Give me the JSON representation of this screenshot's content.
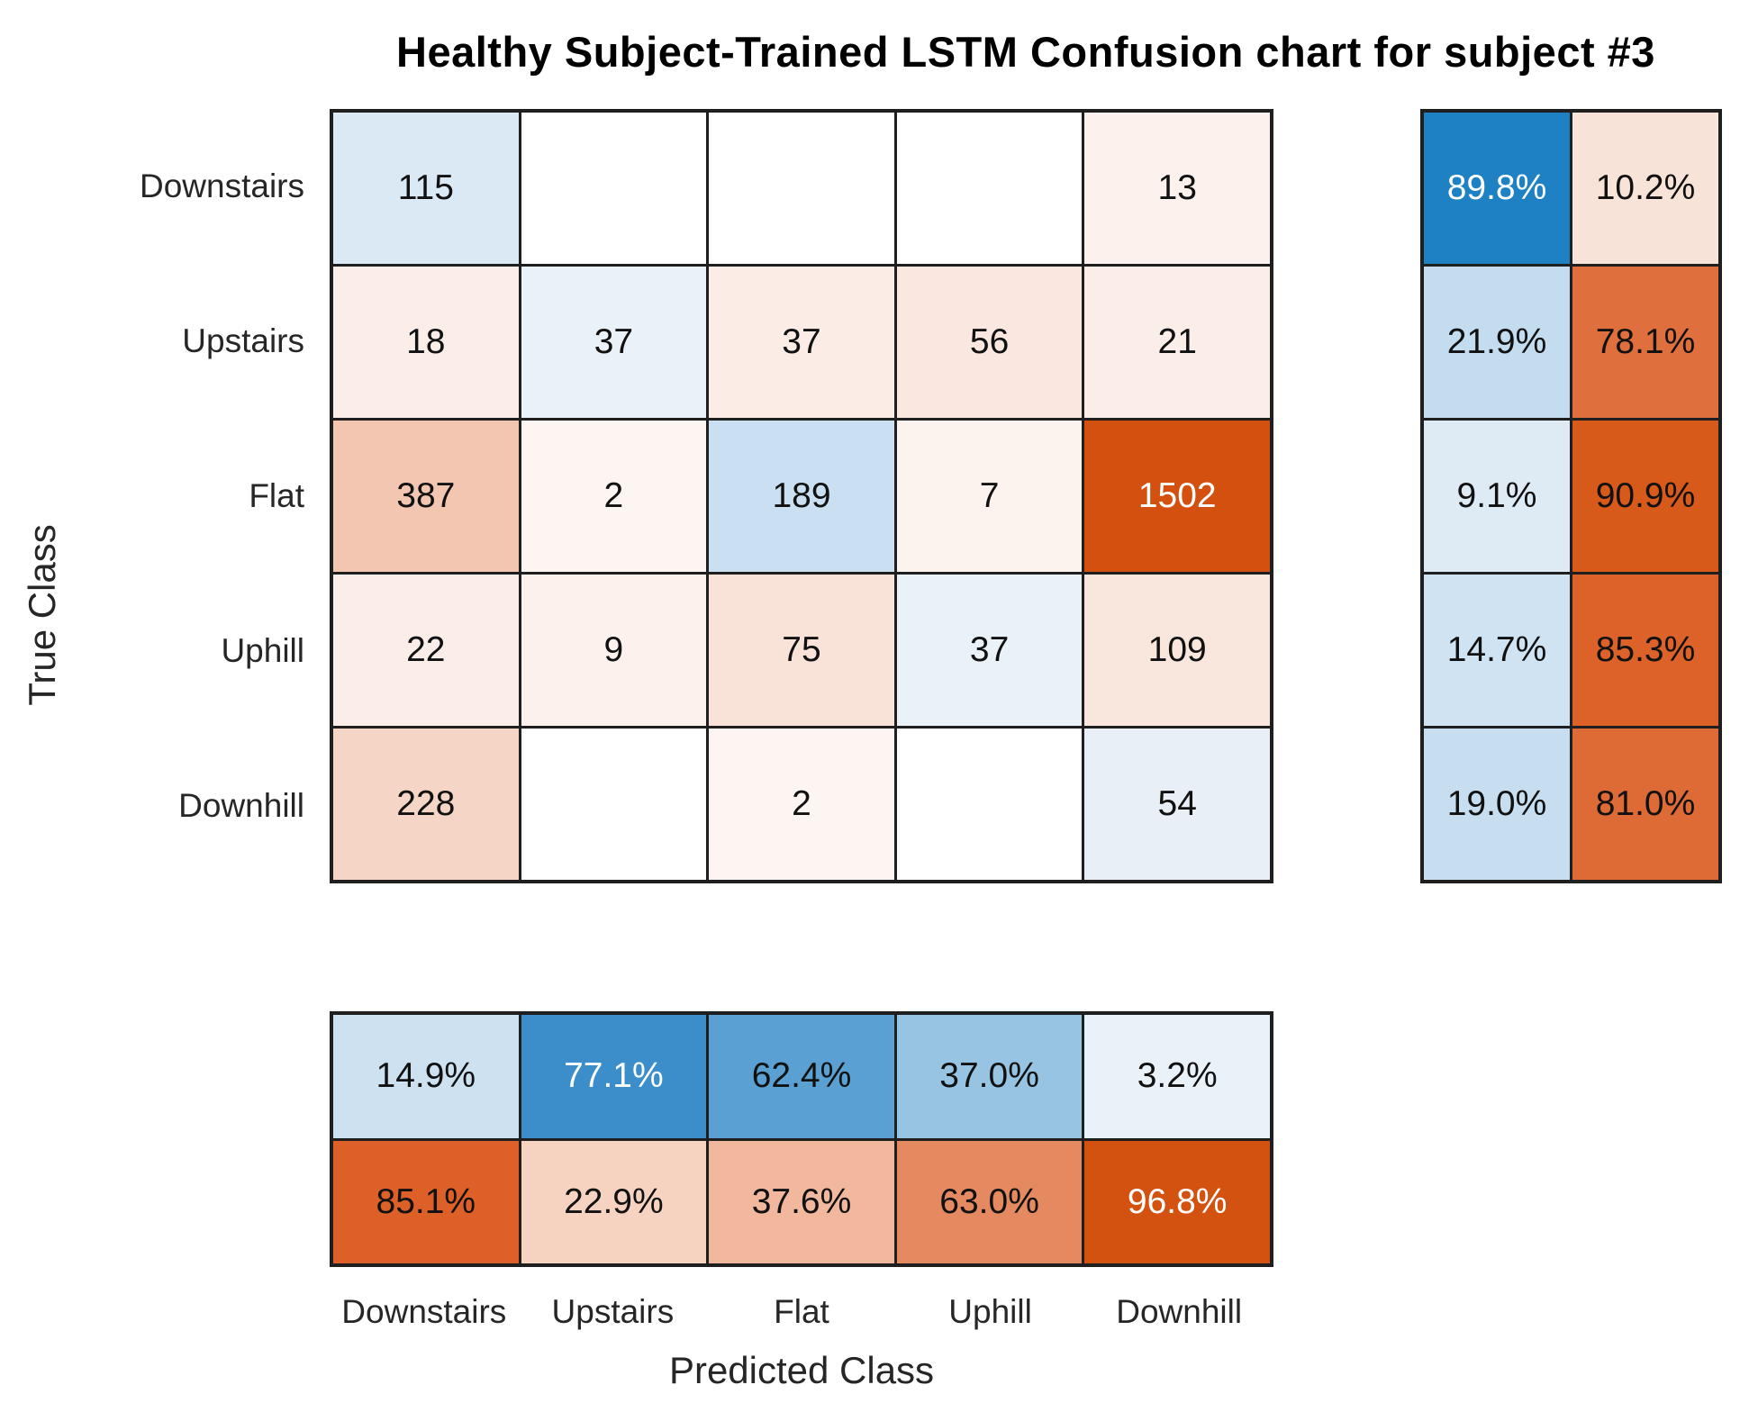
{
  "title": "Healthy Subject-Trained LSTM Confusion chart for subject #3",
  "x_axis_label": "Predicted Class",
  "y_axis_label": "True Class",
  "chart_data": {
    "type": "heatmap",
    "subtype": "confusion-matrix",
    "title": "Healthy Subject-Trained LSTM Confusion chart for subject #3",
    "xlabel": "Predicted Class",
    "ylabel": "True Class",
    "classes": [
      "Downstairs",
      "Upstairs",
      "Flat",
      "Uphill",
      "Downhill"
    ],
    "matrix_rows_true_cols_predicted": [
      [
        115,
        null,
        null,
        null,
        13
      ],
      [
        18,
        37,
        37,
        56,
        21
      ],
      [
        387,
        2,
        189,
        7,
        1502
      ],
      [
        22,
        9,
        75,
        37,
        109
      ],
      [
        228,
        null,
        2,
        null,
        54
      ]
    ],
    "row_summary_pct_correct_incorrect": [
      [
        89.8,
        10.2
      ],
      [
        21.9,
        78.1
      ],
      [
        9.1,
        90.9
      ],
      [
        14.7,
        85.3
      ],
      [
        19.0,
        81.0
      ]
    ],
    "col_summary_pct_correct_incorrect": [
      [
        14.9,
        85.1
      ],
      [
        77.1,
        22.9
      ],
      [
        62.4,
        37.6
      ],
      [
        37.0,
        63.0
      ],
      [
        3.2,
        96.8
      ]
    ],
    "colors": {
      "diagonal_blue_full": "#1e81c4",
      "off_diagonal_orange_full": "#d4500e",
      "grid_line": "#1f1f1f",
      "background": "#ffffff"
    },
    "legend_position": "none",
    "grid": "on"
  },
  "grids": {
    "main": {
      "cols": 5,
      "cells": [
        {
          "t": "115",
          "bg": "#dbe9f5"
        },
        {
          "t": "",
          "bg": "#ffffff"
        },
        {
          "t": "",
          "bg": "#ffffff"
        },
        {
          "t": "",
          "bg": "#ffffff"
        },
        {
          "t": "13",
          "bg": "#fcf1ec"
        },
        {
          "t": "18",
          "bg": "#fbeee9"
        },
        {
          "t": "37",
          "bg": "#eaf2f9"
        },
        {
          "t": "37",
          "bg": "#fbece6"
        },
        {
          "t": "56",
          "bg": "#fae8e0"
        },
        {
          "t": "21",
          "bg": "#fbede7"
        },
        {
          "t": "387",
          "bg": "#f2c6b0"
        },
        {
          "t": "2",
          "bg": "#fdf5f1"
        },
        {
          "t": "189",
          "bg": "#cadff1"
        },
        {
          "t": "7",
          "bg": "#fdf3ee"
        },
        {
          "t": "1502",
          "bg": "#d4500e",
          "fg": "#ffffff"
        },
        {
          "t": "22",
          "bg": "#fbede7"
        },
        {
          "t": "9",
          "bg": "#fcf1ec"
        },
        {
          "t": "75",
          "bg": "#f9e3d8"
        },
        {
          "t": "37",
          "bg": "#eaf2f9"
        },
        {
          "t": "109",
          "bg": "#f9e6dc"
        },
        {
          "t": "228",
          "bg": "#f5d5c5"
        },
        {
          "t": "",
          "bg": "#ffffff"
        },
        {
          "t": "2",
          "bg": "#fdf5f1"
        },
        {
          "t": "",
          "bg": "#ffffff"
        },
        {
          "t": "54",
          "bg": "#e8eff7"
        }
      ]
    },
    "row_summary": {
      "cols": 2,
      "cells": [
        {
          "t": "89.8%",
          "bg": "#1e81c4",
          "fg": "#ffffff"
        },
        {
          "t": "10.2%",
          "bg": "#f8e3d8"
        },
        {
          "t": "21.9%",
          "bg": "#c3dcef"
        },
        {
          "t": "78.1%",
          "bg": "#e06f3e"
        },
        {
          "t": "9.1%",
          "bg": "#deebf5"
        },
        {
          "t": "90.9%",
          "bg": "#d85a1b"
        },
        {
          "t": "14.7%",
          "bg": "#d0e3f2"
        },
        {
          "t": "85.3%",
          "bg": "#dc6229"
        },
        {
          "t": "19.0%",
          "bg": "#c7def0"
        },
        {
          "t": "81.0%",
          "bg": "#de6a36"
        }
      ]
    },
    "col_summary": {
      "cols": 5,
      "cells": [
        {
          "t": "14.9%",
          "bg": "#cee1f1"
        },
        {
          "t": "77.1%",
          "bg": "#3b8ec9",
          "fg": "#ffffff"
        },
        {
          "t": "62.4%",
          "bg": "#5ba0d3"
        },
        {
          "t": "37.0%",
          "bg": "#97c4e3"
        },
        {
          "t": "3.2%",
          "bg": "#eaf2f9"
        },
        {
          "t": "85.1%",
          "bg": "#dc6027"
        },
        {
          "t": "22.9%",
          "bg": "#f6d2c0"
        },
        {
          "t": "37.6%",
          "bg": "#f1b89d"
        },
        {
          "t": "63.0%",
          "bg": "#e58961"
        },
        {
          "t": "96.8%",
          "bg": "#d4520f",
          "fg": "#ffffff"
        }
      ]
    }
  }
}
